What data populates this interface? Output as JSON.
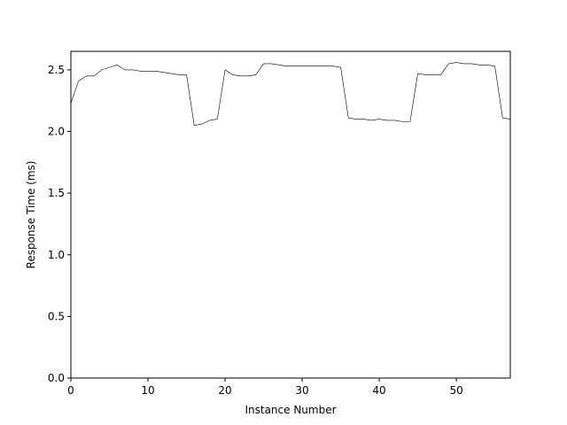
{
  "chart_data": {
    "type": "line",
    "title": "",
    "xlabel": "Instance Number",
    "ylabel": "Response Time (ms)",
    "xlim": [
      0,
      57
    ],
    "ylim": [
      0.0,
      2.65
    ],
    "xticks": [
      0,
      10,
      20,
      30,
      40,
      50
    ],
    "yticks": [
      0.0,
      0.5,
      1.0,
      1.5,
      2.0,
      2.5
    ],
    "xtick_labels": [
      "0",
      "10",
      "20",
      "30",
      "40",
      "50"
    ],
    "ytick_labels": [
      "0.0",
      "0.5",
      "1.0",
      "1.5",
      "2.0",
      "2.5"
    ],
    "grid": false,
    "line_color": "#000000",
    "series": [
      {
        "x": [
          0,
          1,
          2,
          3,
          4,
          5,
          6,
          7,
          8,
          9,
          10,
          11,
          12,
          13,
          14,
          15,
          16,
          17,
          18,
          19,
          20,
          21,
          22,
          23,
          24,
          25,
          26,
          27,
          28,
          29,
          30,
          31,
          32,
          33,
          34,
          35,
          36,
          37,
          38,
          39,
          40,
          41,
          42,
          43,
          44,
          45,
          46,
          47,
          48,
          49,
          50,
          51,
          52,
          53,
          54,
          55,
          56,
          57
        ],
        "values": [
          2.23,
          2.41,
          2.45,
          2.45,
          2.5,
          2.52,
          2.54,
          2.5,
          2.5,
          2.49,
          2.49,
          2.49,
          2.48,
          2.47,
          2.46,
          2.46,
          2.05,
          2.06,
          2.09,
          2.1,
          2.5,
          2.46,
          2.45,
          2.45,
          2.46,
          2.55,
          2.55,
          2.54,
          2.53,
          2.53,
          2.53,
          2.53,
          2.53,
          2.53,
          2.53,
          2.52,
          2.11,
          2.1,
          2.1,
          2.09,
          2.1,
          2.09,
          2.09,
          2.08,
          2.08,
          2.47,
          2.46,
          2.46,
          2.46,
          2.55,
          2.56,
          2.55,
          2.55,
          2.54,
          2.54,
          2.53,
          2.11,
          2.1
        ]
      }
    ]
  }
}
